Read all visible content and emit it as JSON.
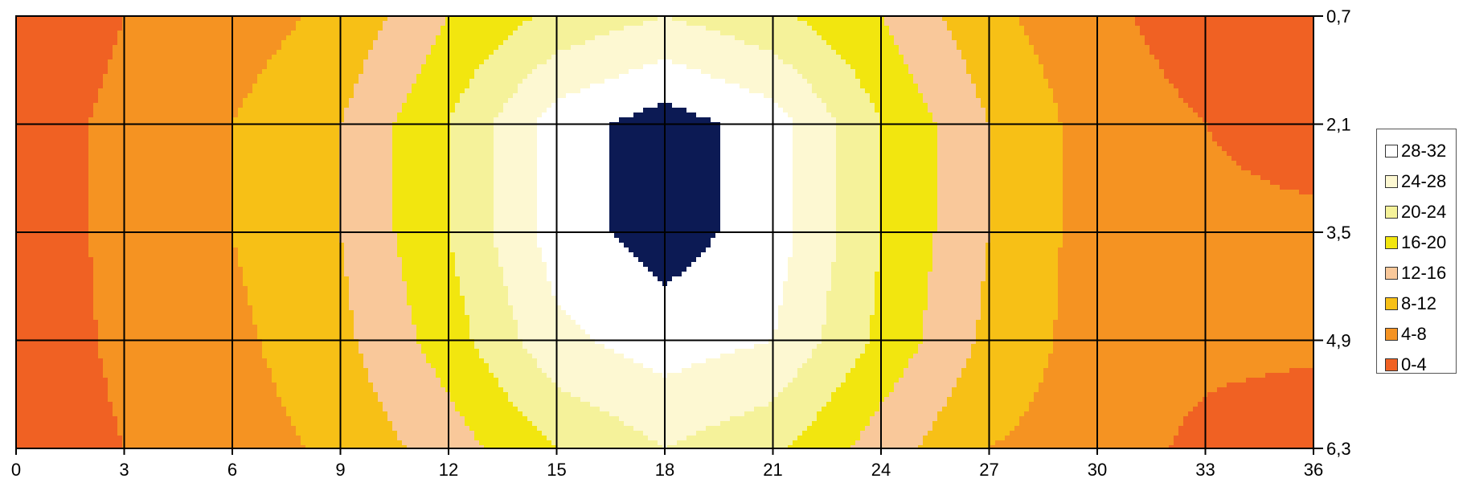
{
  "chart_data": {
    "type": "heatmap",
    "subtype": "contour",
    "x": [
      0,
      3,
      6,
      9,
      12,
      15,
      18,
      21,
      24,
      27,
      30,
      33,
      36
    ],
    "x_tick_labels": [
      "0",
      "3",
      "6",
      "9",
      "12",
      "15",
      "18",
      "21",
      "24",
      "27",
      "30",
      "33",
      "36"
    ],
    "y": [
      0.7,
      2.1,
      3.5,
      4.9,
      6.3
    ],
    "y_tick_labels": [
      "0,7",
      "2,1",
      "3,5",
      "4,9",
      "6,3"
    ],
    "y_axis_side": "right",
    "y_reversed": true,
    "grid": true,
    "values": [
      [
        1,
        4,
        6,
        9,
        16,
        21,
        24,
        21,
        16,
        9,
        5,
        2,
        1
      ],
      [
        2,
        5,
        8,
        12,
        20,
        30,
        34,
        30,
        20,
        12,
        6,
        4,
        2
      ],
      [
        2,
        5,
        8,
        12,
        20,
        30,
        34,
        30,
        20,
        12,
        6,
        5,
        5
      ],
      [
        1,
        5,
        7,
        11,
        18,
        27,
        30,
        28,
        19,
        11,
        6,
        5,
        5
      ],
      [
        1,
        4,
        6,
        9,
        14,
        20,
        24,
        21,
        14,
        8,
        6,
        3,
        1
      ]
    ],
    "bands": [
      {
        "label": "28-32",
        "min": 28,
        "max": 32,
        "color": "#ffffff"
      },
      {
        "label": "24-28",
        "min": 24,
        "max": 28,
        "color": "#fdf8d2"
      },
      {
        "label": "20-24",
        "min": 20,
        "max": 24,
        "color": "#f5f29a"
      },
      {
        "label": "16-20",
        "min": 16,
        "max": 20,
        "color": "#f2e60f"
      },
      {
        "label": "12-16",
        "min": 12,
        "max": 16,
        "color": "#f9c89a"
      },
      {
        "label": "8-12",
        "min": 8,
        "max": 12,
        "color": "#f7c016"
      },
      {
        "label": "4-8",
        "min": 4,
        "max": 8,
        "color": "#f59322"
      },
      {
        "label": "0-4",
        "min": 0,
        "max": 4,
        "color": "#f06123"
      }
    ],
    "overflow_color": "#0c1a54",
    "legend_position": "right"
  }
}
